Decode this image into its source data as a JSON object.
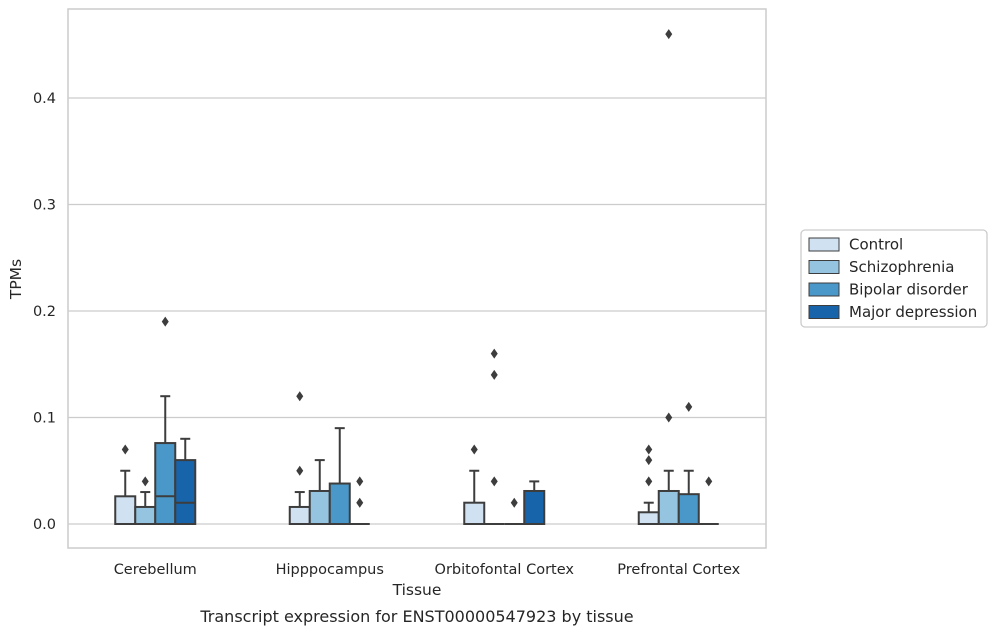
{
  "chart_data": {
    "type": "box",
    "title": "",
    "caption": "Transcript expression for ENST00000547923 by tissue",
    "xlabel": "Tissue",
    "ylabel": "TPMs",
    "ylim": [
      -0.023,
      0.483
    ],
    "yticks": [
      "0.0",
      "0.1",
      "0.2",
      "0.3",
      "0.4"
    ],
    "ytick_values": [
      0.0,
      0.1,
      0.2,
      0.3,
      0.4
    ],
    "grid": true,
    "legend_position": "right",
    "categories": [
      "Cerebellum",
      "Hipppocampus",
      "Orbitofontal Cortex",
      "Prefrontal Cortex"
    ],
    "series": [
      {
        "name": "Control",
        "color": "#d0e1f2",
        "boxes": [
          {
            "q1": 0.0,
            "median": 0.0,
            "q3": 0.026,
            "whisker_low": 0.0,
            "whisker_high": 0.05,
            "outliers": [
              0.07
            ]
          },
          {
            "q1": 0.0,
            "median": 0.0,
            "q3": 0.016,
            "whisker_low": 0.0,
            "whisker_high": 0.03,
            "outliers": [
              0.05,
              0.12
            ]
          },
          {
            "q1": 0.0,
            "median": 0.0,
            "q3": 0.02,
            "whisker_low": 0.0,
            "whisker_high": 0.05,
            "outliers": [
              0.07
            ]
          },
          {
            "q1": 0.0,
            "median": 0.0,
            "q3": 0.011,
            "whisker_low": 0.0,
            "whisker_high": 0.02,
            "outliers": [
              0.04,
              0.06,
              0.07
            ]
          }
        ]
      },
      {
        "name": "Schizophrenia",
        "color": "#94c4df",
        "boxes": [
          {
            "q1": 0.0,
            "median": 0.0,
            "q3": 0.016,
            "whisker_low": 0.0,
            "whisker_high": 0.03,
            "outliers": [
              0.04
            ]
          },
          {
            "q1": 0.0,
            "median": 0.0,
            "q3": 0.031,
            "whisker_low": 0.0,
            "whisker_high": 0.06,
            "outliers": []
          },
          {
            "q1": 0.0,
            "median": 0.0,
            "q3": 0.0,
            "whisker_low": 0.0,
            "whisker_high": 0.0,
            "outliers": [
              0.04,
              0.14,
              0.16
            ]
          },
          {
            "q1": 0.0,
            "median": 0.0,
            "q3": 0.031,
            "whisker_low": 0.0,
            "whisker_high": 0.05,
            "outliers": [
              0.1,
              0.46
            ]
          }
        ]
      },
      {
        "name": "Bipolar disorder",
        "color": "#4a98c9",
        "boxes": [
          {
            "q1": 0.0,
            "median": 0.026,
            "q3": 0.076,
            "whisker_low": 0.0,
            "whisker_high": 0.12,
            "outliers": [
              0.19
            ]
          },
          {
            "q1": 0.0,
            "median": 0.0,
            "q3": 0.038,
            "whisker_low": 0.0,
            "whisker_high": 0.09,
            "outliers": []
          },
          {
            "q1": 0.0,
            "median": 0.0,
            "q3": 0.0,
            "whisker_low": 0.0,
            "whisker_high": 0.0,
            "outliers": [
              0.02
            ]
          },
          {
            "q1": 0.0,
            "median": 0.0,
            "q3": 0.028,
            "whisker_low": 0.0,
            "whisker_high": 0.05,
            "outliers": [
              0.11
            ]
          }
        ]
      },
      {
        "name": "Major depression",
        "color": "#1764ab",
        "boxes": [
          {
            "q1": 0.0,
            "median": 0.02,
            "q3": 0.06,
            "whisker_low": 0.0,
            "whisker_high": 0.08,
            "outliers": []
          },
          {
            "q1": 0.0,
            "median": 0.0,
            "q3": 0.0,
            "whisker_low": 0.0,
            "whisker_high": 0.0,
            "outliers": [
              0.02,
              0.04
            ]
          },
          {
            "q1": 0.0,
            "median": 0.0,
            "q3": 0.031,
            "whisker_low": 0.0,
            "whisker_high": 0.04,
            "outliers": []
          },
          {
            "q1": 0.0,
            "median": 0.0,
            "q3": 0.0,
            "whisker_low": 0.0,
            "whisker_high": 0.0,
            "outliers": [
              0.04
            ]
          }
        ]
      }
    ]
  }
}
